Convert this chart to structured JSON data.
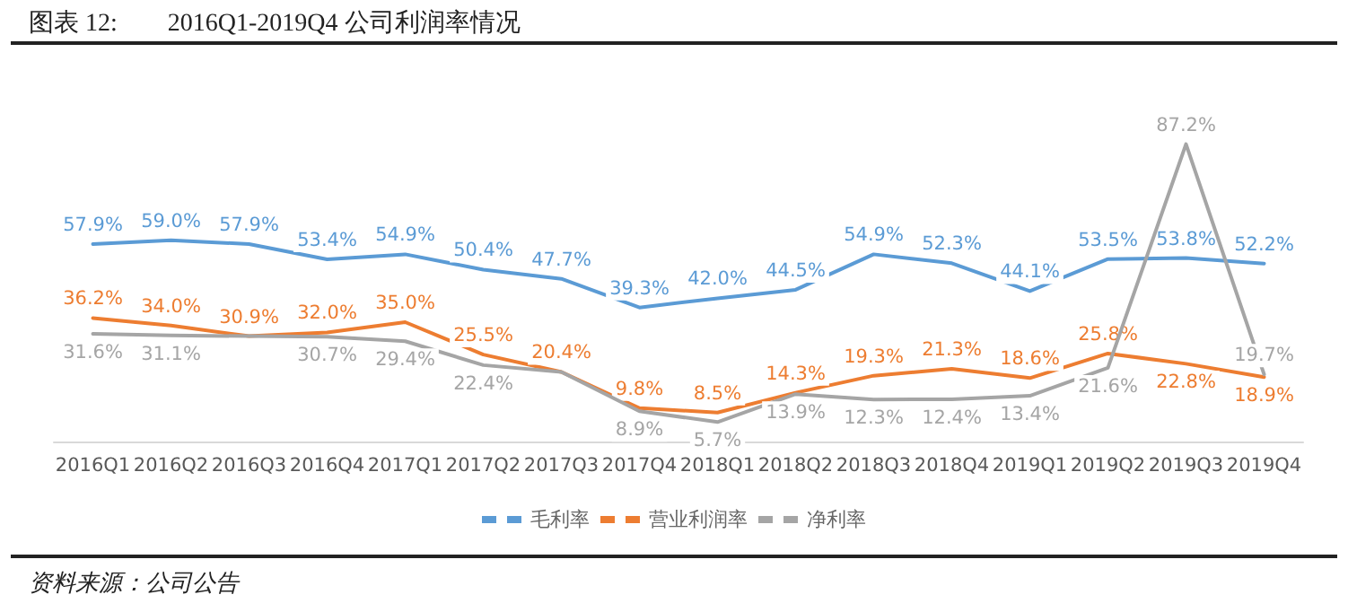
{
  "chart_data": {
    "type": "line",
    "title": "图表 12:　　2016Q1-2019Q4 公司利润率情况",
    "categories": [
      "2016Q1",
      "2016Q2",
      "2016Q3",
      "2016Q4",
      "2017Q1",
      "2017Q2",
      "2017Q3",
      "2017Q4",
      "2018Q1",
      "2018Q2",
      "2018Q3",
      "2018Q4",
      "2019Q1",
      "2019Q2",
      "2019Q3",
      "2019Q4"
    ],
    "series": [
      {
        "name": "毛利率",
        "color": "#5b9bd5",
        "values": [
          57.9,
          59.0,
          57.9,
          53.4,
          54.9,
          50.4,
          47.7,
          39.3,
          42.0,
          44.5,
          54.9,
          52.3,
          44.1,
          53.5,
          53.8,
          52.2
        ],
        "value_labels": [
          "57.9%",
          "59.0%",
          "57.9%",
          "53.4%",
          "54.9%",
          "50.4%",
          "47.7%",
          "39.3%",
          "42.0%",
          "44.5%",
          "54.9%",
          "52.3%",
          "44.1%",
          "53.5%",
          "53.8%",
          "52.2%"
        ]
      },
      {
        "name": "营业利润率",
        "color": "#ed7d31",
        "values": [
          36.2,
          34.0,
          30.9,
          32.0,
          35.0,
          25.5,
          20.4,
          9.8,
          8.5,
          14.3,
          19.3,
          21.3,
          18.6,
          25.8,
          22.8,
          18.9
        ],
        "value_labels": [
          "36.2%",
          "34.0%",
          "30.9%",
          "32.0%",
          "35.0%",
          "25.5%",
          "20.4%",
          "9.8%",
          "8.5%",
          "14.3%",
          "19.3%",
          "21.3%",
          "18.6%",
          "25.8%",
          "22.8%",
          "18.9%"
        ]
      },
      {
        "name": "净利率",
        "color": "#a5a5a5",
        "values": [
          31.6,
          31.1,
          30.9,
          30.7,
          29.4,
          22.4,
          20.4,
          8.9,
          5.7,
          13.9,
          12.3,
          12.4,
          13.4,
          21.6,
          87.2,
          19.7
        ],
        "value_labels": [
          "31.6%",
          "31.1%",
          null,
          "30.7%",
          "29.4%",
          "22.4%",
          null,
          "8.9%",
          "5.7%",
          "13.9%",
          "12.3%",
          "12.4%",
          "13.4%",
          "21.6%",
          "87.2%",
          "19.7%"
        ]
      }
    ],
    "legend": "bottom",
    "grid": false,
    "marker": "none",
    "line_style": "solid",
    "annotations": [
      "资料来源：公司公告"
    ]
  }
}
